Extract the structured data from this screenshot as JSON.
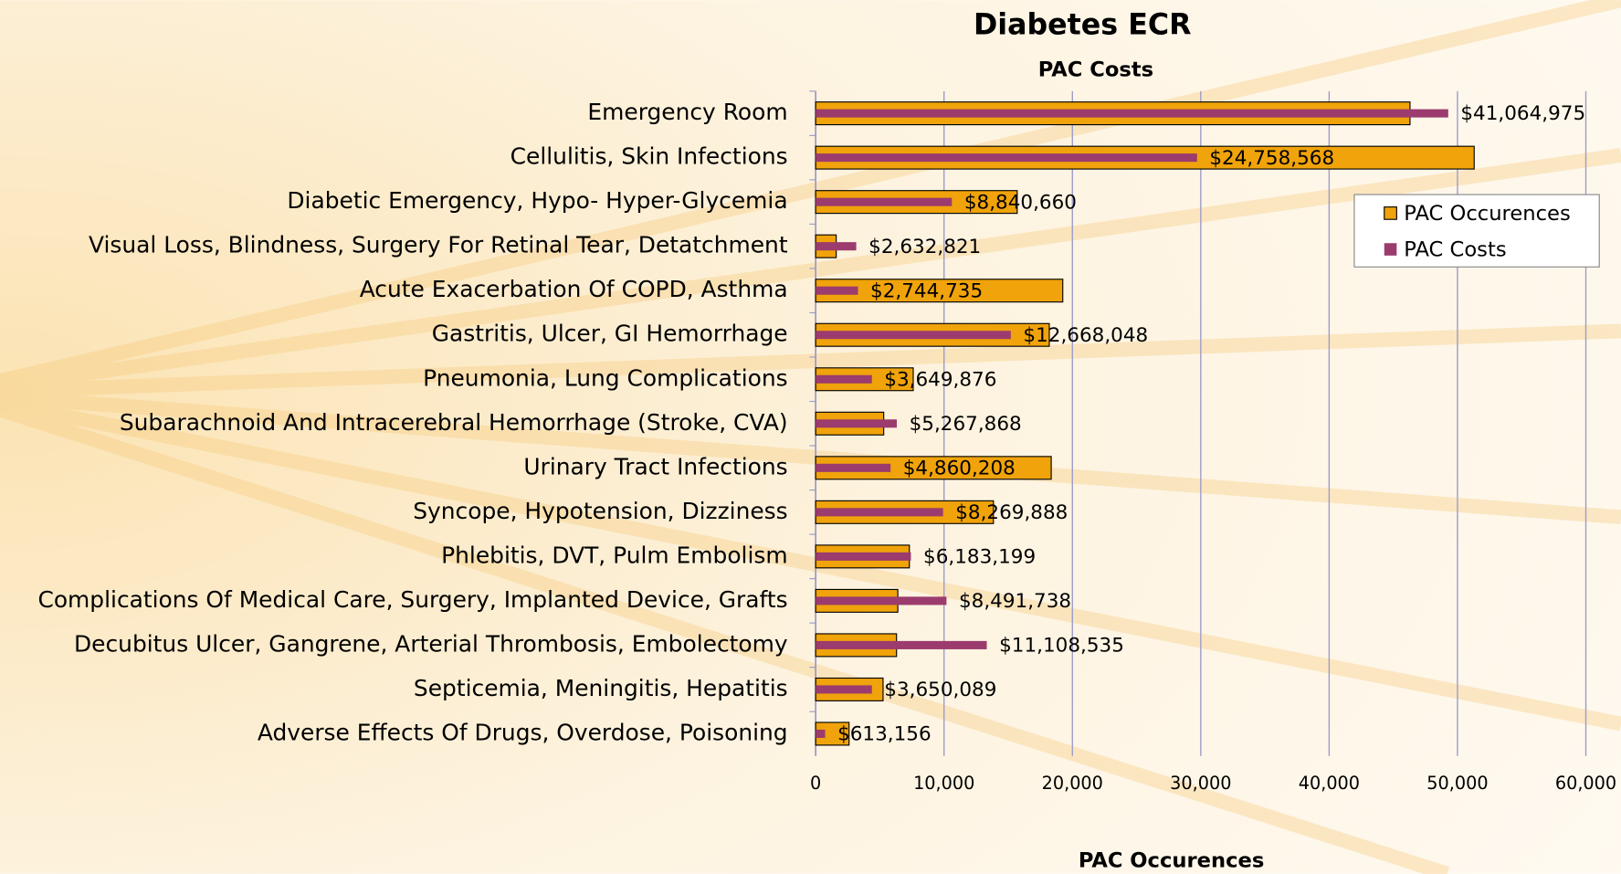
{
  "chart_data": {
    "type": "hbar",
    "title": "Diabetes ECR",
    "subtitle": "PAC Costs",
    "xlabel": "PAC Occurences",
    "categories": [
      "Emergency Room",
      "Cellulitis, Skin Infections",
      "Diabetic Emergency, Hypo- Hyper-Glycemia",
      "Visual Loss, Blindness, Surgery For Retinal Tear, Detatchment",
      "Acute Exacerbation Of COPD, Asthma",
      "Gastritis, Ulcer, GI Hemorrhage",
      "Pneumonia, Lung Complications",
      "Subarachnoid And Intracerebral Hemorrhage (Stroke, CVA)",
      "Urinary Tract Infections",
      "Syncope, Hypotension, Dizziness",
      "Phlebitis, DVT, Pulm Embolism",
      "Complications Of Medical Care, Surgery, Implanted Device, Grafts",
      "Decubitus Ulcer, Gangrene, Arterial Thrombosis, Embolectomy",
      "Septicemia, Meningitis, Hepatitis",
      "Adverse Effects Of Drugs, Overdose, Poisoning"
    ],
    "series": [
      {
        "name": "PAC Occurences",
        "color": "#f0a30a",
        "values": [
          46300,
          51300,
          15700,
          1600,
          19250,
          18200,
          7600,
          5300,
          18350,
          13850,
          7300,
          6400,
          6300,
          5250,
          2600
        ]
      },
      {
        "name": "PAC Costs",
        "color": "#9b3b6e",
        "axis": "x2",
        "values": [
          41064975,
          24758568,
          8840660,
          2632821,
          2744735,
          12668048,
          3649876,
          5267868,
          4860208,
          8269888,
          6183199,
          8491738,
          11108535,
          3650089,
          613156
        ],
        "value_labels": [
          "$41,064,975",
          "$24,758,568",
          "$8,840,660",
          "$2,632,821",
          "$2,744,735",
          "$12,668,048",
          "$3,649,876",
          "$5,267,868",
          "$4,860,208",
          "$8,269,888",
          "$6,183,199",
          "$8,491,738",
          "$11,108,535",
          "$3,650,089",
          "$613,156"
        ]
      }
    ],
    "xlim": [
      0,
      60000
    ],
    "xticks": [
      0,
      {
        "value": 10000,
        "label": "10,000"
      },
      {
        "value": 20000,
        "label": "20,000"
      },
      {
        "value": 30000,
        "label": "30,000"
      },
      {
        "value": 40000,
        "label": "40,000"
      },
      {
        "value": 50000,
        "label": "50,000"
      },
      {
        "value": 60000,
        "label": "60,000"
      }
    ],
    "x2lim": [
      0,
      50000000
    ],
    "grid": true,
    "legend": "right"
  }
}
